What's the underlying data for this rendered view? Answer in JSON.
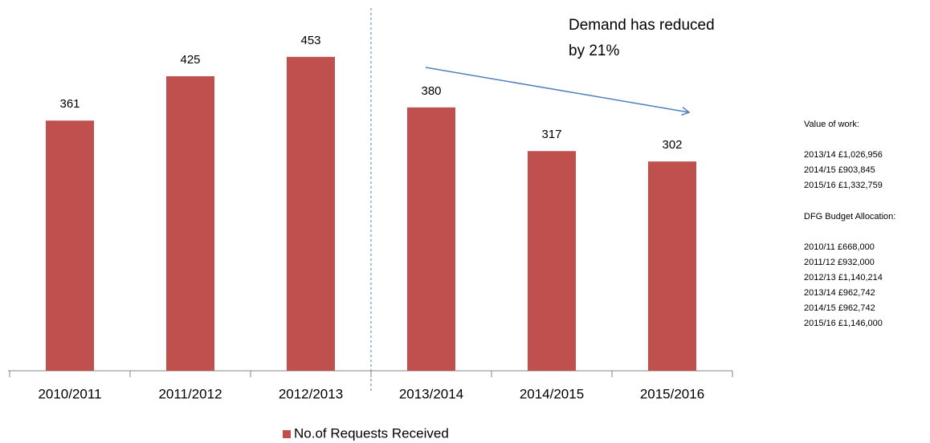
{
  "chart_data": {
    "type": "bar",
    "categories": [
      "2010/2011",
      "2011/2012",
      "2012/2013",
      "2013/2014",
      "2014/2015",
      "2015/2016"
    ],
    "series": [
      {
        "name": "No.of Requests Received",
        "color": "#c0504d",
        "values": [
          361,
          425,
          453,
          380,
          317,
          302
        ]
      }
    ],
    "ylim": [
      0,
      535
    ],
    "annotation": [
      "Demand has reduced",
      "by 21%"
    ],
    "legend": "bottom"
  },
  "side_notes": [
    {
      "title": "Value of work:",
      "items": [
        "2013/14 £1,026,956",
        "2014/15 £903,845",
        "2015/16 £1,332,759"
      ]
    },
    {
      "title": "DFG Budget Allocation:",
      "items": [
        "2010/11 £668,000",
        "2011/12 £932,000",
        "2012/13 £1,140,214",
        "2013/14 £962,742",
        "2014/15 £962,742",
        "2015/16 £1,146,000"
      ]
    }
  ]
}
